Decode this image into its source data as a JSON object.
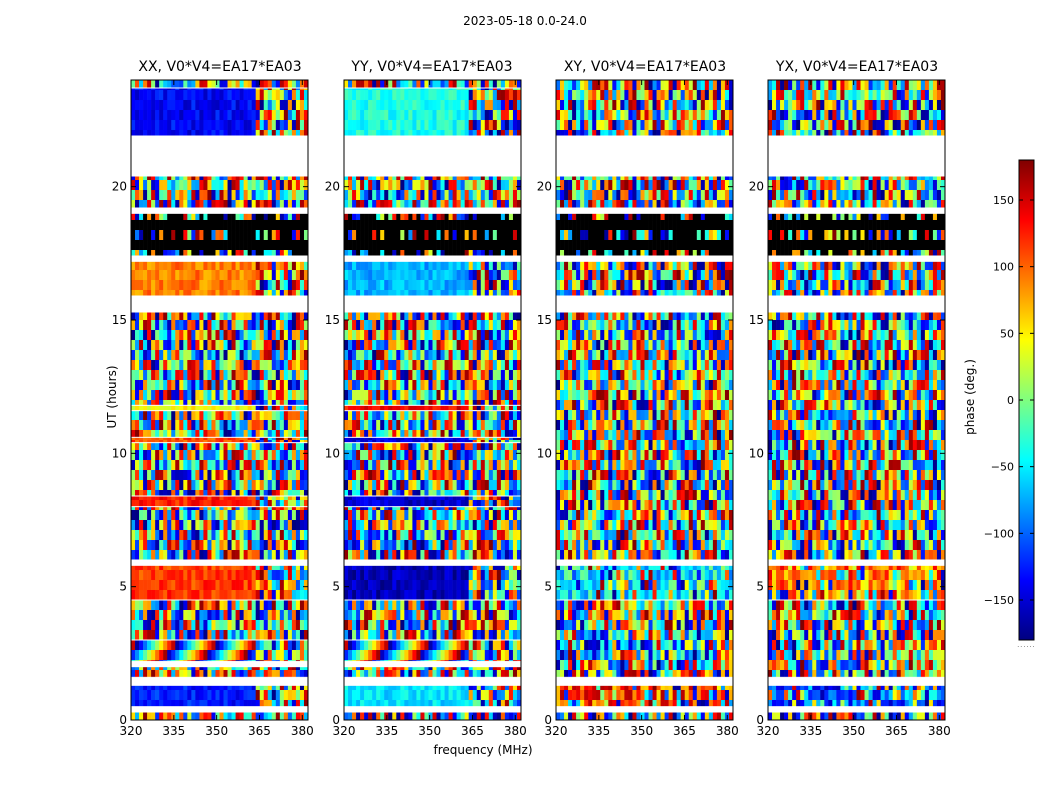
{
  "figure": {
    "suptitle": "2023-05-18 0.0-24.0",
    "ylabel": "UT (hours)",
    "xlabel": "frequency (MHz)",
    "colorbar_label": "phase (deg.)",
    "colorbar_footer": "......"
  },
  "chart_data": {
    "type": "heatmap",
    "x_unit": "MHz",
    "y_unit": "hours",
    "xlim": [
      320,
      382
    ],
    "ylim": [
      0,
      24
    ],
    "x_ticks": [
      "320",
      "335",
      "350",
      "365",
      "380"
    ],
    "y_ticks": [
      "0",
      "5",
      "10",
      "15",
      "20"
    ],
    "colorbar": {
      "range": [
        -180,
        180
      ],
      "ticks": [
        "−150",
        "−100",
        "−50",
        "0",
        "50",
        "100",
        "150"
      ],
      "colormap": "jet"
    },
    "panels": [
      {
        "title": "XX, V0*V4=EA17*EA03",
        "bands": [
          {
            "y": [
              0.0,
              0.3
            ],
            "s": "noise"
          },
          {
            "y": [
              0.3,
              0.5
            ],
            "s": "blank"
          },
          {
            "y": [
              0.5,
              1.3
            ],
            "s": "coh",
            "hue": 0.15,
            "cut": 364
          },
          {
            "y": [
              1.3,
              1.6
            ],
            "s": "blank"
          },
          {
            "y": [
              1.6,
              2.0
            ],
            "s": "noise"
          },
          {
            "y": [
              2.0,
              2.2
            ],
            "s": "blank"
          },
          {
            "y": [
              2.2,
              3.0
            ],
            "s": "fringe",
            "cut": 364
          },
          {
            "y": [
              3.0,
              4.5
            ],
            "s": "noise"
          },
          {
            "y": [
              4.5,
              5.8
            ],
            "s": "coh",
            "hue": 0.82,
            "cut": 364
          },
          {
            "y": [
              5.8,
              6.0
            ],
            "s": "blank"
          },
          {
            "y": [
              6.0,
              8.0
            ],
            "s": "noise"
          },
          {
            "y": [
              8.0,
              8.4
            ],
            "s": "coh",
            "hue": 0.85,
            "cut": 364
          },
          {
            "y": [
              8.4,
              10.4
            ],
            "s": "noise"
          },
          {
            "y": [
              10.4,
              10.6
            ],
            "s": "coh",
            "hue": 0.8,
            "cut": 364
          },
          {
            "y": [
              10.6,
              11.6
            ],
            "s": "noise"
          },
          {
            "y": [
              11.6,
              11.8
            ],
            "s": "coh",
            "hue": 0.62,
            "cut": 364
          },
          {
            "y": [
              11.8,
              15.3
            ],
            "s": "noise"
          },
          {
            "y": [
              15.3,
              15.9
            ],
            "s": "blank"
          },
          {
            "y": [
              15.9,
              17.2
            ],
            "s": "coh",
            "hue": 0.75,
            "cut": 364
          },
          {
            "y": [
              17.2,
              17.4
            ],
            "s": "blank"
          },
          {
            "y": [
              17.4,
              19.0
            ],
            "s": "dark"
          },
          {
            "y": [
              19.0,
              19.2
            ],
            "s": "blank"
          },
          {
            "y": [
              19.2,
              20.4
            ],
            "s": "noise"
          },
          {
            "y": [
              20.4,
              21.9
            ],
            "s": "blank"
          },
          {
            "y": [
              21.9,
              23.7
            ],
            "s": "coh",
            "hue": 0.12,
            "cut": 364
          },
          {
            "y": [
              23.7,
              24.0
            ],
            "s": "noise"
          }
        ]
      },
      {
        "title": "YY, V0*V4=EA17*EA03",
        "bands": [
          {
            "y": [
              0.0,
              0.3
            ],
            "s": "noise"
          },
          {
            "y": [
              0.3,
              0.5
            ],
            "s": "blank"
          },
          {
            "y": [
              0.5,
              1.3
            ],
            "s": "coh",
            "hue": 0.35,
            "cut": 364
          },
          {
            "y": [
              1.3,
              1.6
            ],
            "s": "blank"
          },
          {
            "y": [
              1.6,
              2.0
            ],
            "s": "noise"
          },
          {
            "y": [
              2.0,
              2.2
            ],
            "s": "blank"
          },
          {
            "y": [
              2.2,
              3.0
            ],
            "s": "fringe",
            "cut": 364
          },
          {
            "y": [
              3.0,
              4.5
            ],
            "s": "noise"
          },
          {
            "y": [
              4.5,
              5.8
            ],
            "s": "coh",
            "hue": 0.05,
            "cut": 364
          },
          {
            "y": [
              5.8,
              6.0
            ],
            "s": "blank"
          },
          {
            "y": [
              6.0,
              8.0
            ],
            "s": "noise"
          },
          {
            "y": [
              8.0,
              8.4
            ],
            "s": "coh",
            "hue": 0.08,
            "cut": 364
          },
          {
            "y": [
              8.4,
              10.4
            ],
            "s": "noise"
          },
          {
            "y": [
              10.4,
              10.6
            ],
            "s": "coh",
            "hue": 0.1,
            "cut": 364
          },
          {
            "y": [
              10.6,
              11.6
            ],
            "s": "noise"
          },
          {
            "y": [
              11.6,
              11.8
            ],
            "s": "coh",
            "hue": 0.88,
            "cut": 364
          },
          {
            "y": [
              11.8,
              15.3
            ],
            "s": "noise"
          },
          {
            "y": [
              15.3,
              15.9
            ],
            "s": "blank"
          },
          {
            "y": [
              15.9,
              17.2
            ],
            "s": "coh",
            "hue": 0.3,
            "cut": 364
          },
          {
            "y": [
              17.2,
              17.4
            ],
            "s": "blank"
          },
          {
            "y": [
              17.4,
              19.0
            ],
            "s": "dark"
          },
          {
            "y": [
              19.0,
              19.2
            ],
            "s": "blank"
          },
          {
            "y": [
              19.2,
              20.4
            ],
            "s": "noise"
          },
          {
            "y": [
              20.4,
              21.9
            ],
            "s": "blank"
          },
          {
            "y": [
              21.9,
              23.7
            ],
            "s": "coh",
            "hue": 0.4,
            "cut": 364
          },
          {
            "y": [
              23.7,
              24.0
            ],
            "s": "noise"
          }
        ]
      },
      {
        "title": "XY, V0*V4=EA17*EA03",
        "bands": [
          {
            "y": [
              0.0,
              0.3
            ],
            "s": "noise"
          },
          {
            "y": [
              0.3,
              0.5
            ],
            "s": "blank"
          },
          {
            "y": [
              0.5,
              1.3
            ],
            "s": "weak",
            "hue": 0.8
          },
          {
            "y": [
              1.3,
              1.6
            ],
            "s": "blank"
          },
          {
            "y": [
              1.6,
              4.5
            ],
            "s": "noise"
          },
          {
            "y": [
              4.5,
              5.8
            ],
            "s": "weak",
            "hue": 0.38
          },
          {
            "y": [
              5.8,
              6.0
            ],
            "s": "blank"
          },
          {
            "y": [
              6.0,
              15.3
            ],
            "s": "noise"
          },
          {
            "y": [
              15.3,
              15.9
            ],
            "s": "blank"
          },
          {
            "y": [
              15.9,
              17.2
            ],
            "s": "noise"
          },
          {
            "y": [
              17.2,
              17.4
            ],
            "s": "blank"
          },
          {
            "y": [
              17.4,
              19.0
            ],
            "s": "dark"
          },
          {
            "y": [
              19.0,
              19.2
            ],
            "s": "blank"
          },
          {
            "y": [
              19.2,
              20.4
            ],
            "s": "noise"
          },
          {
            "y": [
              20.4,
              21.9
            ],
            "s": "blank"
          },
          {
            "y": [
              21.9,
              24.0
            ],
            "s": "noise"
          }
        ]
      },
      {
        "title": "YX, V0*V4=EA17*EA03",
        "bands": [
          {
            "y": [
              0.0,
              0.3
            ],
            "s": "noise"
          },
          {
            "y": [
              0.3,
              0.5
            ],
            "s": "blank"
          },
          {
            "y": [
              0.5,
              1.3
            ],
            "s": "weak",
            "hue": 0.2
          },
          {
            "y": [
              1.3,
              1.6
            ],
            "s": "blank"
          },
          {
            "y": [
              1.6,
              4.5
            ],
            "s": "noise"
          },
          {
            "y": [
              4.5,
              5.8
            ],
            "s": "weak",
            "hue": 0.75
          },
          {
            "y": [
              5.8,
              6.0
            ],
            "s": "blank"
          },
          {
            "y": [
              6.0,
              15.3
            ],
            "s": "noise"
          },
          {
            "y": [
              15.3,
              15.9
            ],
            "s": "blank"
          },
          {
            "y": [
              15.9,
              17.2
            ],
            "s": "noise"
          },
          {
            "y": [
              17.2,
              17.4
            ],
            "s": "blank"
          },
          {
            "y": [
              17.4,
              19.0
            ],
            "s": "dark"
          },
          {
            "y": [
              19.0,
              19.2
            ],
            "s": "blank"
          },
          {
            "y": [
              19.2,
              20.4
            ],
            "s": "noise"
          },
          {
            "y": [
              20.4,
              21.9
            ],
            "s": "blank"
          },
          {
            "y": [
              21.9,
              24.0
            ],
            "s": "noise"
          }
        ]
      }
    ]
  }
}
